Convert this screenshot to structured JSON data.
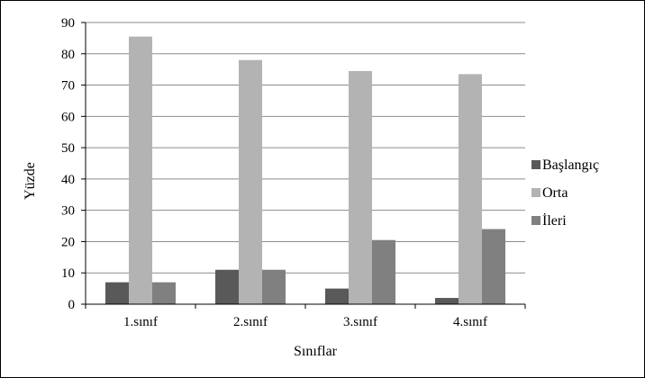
{
  "chart_data": {
    "type": "bar",
    "categories": [
      "1.sınıf",
      "2.sınıf",
      "3.sınıf",
      "4.sınıf"
    ],
    "series": [
      {
        "name": "Başlangıç",
        "color": "#595959",
        "values": [
          7,
          11,
          5,
          2
        ]
      },
      {
        "name": "Orta",
        "color": "#b3b3b3",
        "values": [
          85.5,
          78,
          74.5,
          73.5
        ]
      },
      {
        "name": "İleri",
        "color": "#808080",
        "values": [
          7,
          11,
          20.5,
          24
        ]
      }
    ],
    "title": "",
    "xlabel": "Sınıflar",
    "ylabel": "Yüzde",
    "ylim": [
      0,
      90
    ],
    "yticks": [
      "0",
      "10",
      "20",
      "30",
      "40",
      "50",
      "60",
      "70",
      "80",
      "90"
    ],
    "grid": true,
    "legend_position": "right"
  }
}
